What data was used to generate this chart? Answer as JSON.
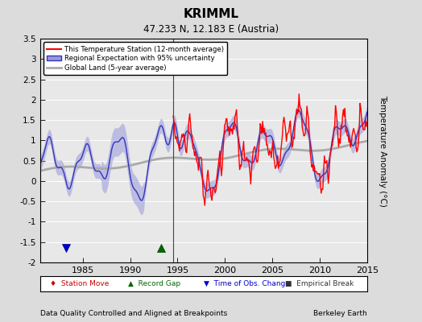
{
  "title": "KRIMML",
  "subtitle": "47.233 N, 12.183 E (Austria)",
  "ylabel": "Temperature Anomaly (°C)",
  "footer_left": "Data Quality Controlled and Aligned at Breakpoints",
  "footer_right": "Berkeley Earth",
  "xlim": [
    1980.5,
    2015
  ],
  "ylim": [
    -2.0,
    3.5
  ],
  "yticks": [
    -2,
    -1.5,
    -1,
    -0.5,
    0,
    0.5,
    1,
    1.5,
    2,
    2.5,
    3,
    3.5
  ],
  "xticks": [
    1985,
    1990,
    1995,
    2000,
    2005,
    2010,
    2015
  ],
  "bg_color": "#dcdcdc",
  "plot_bg_color": "#e8e8e8",
  "grid_color": "#ffffff",
  "vertical_line_x": 1994.5,
  "record_gap_x": 1993.3,
  "record_gap_y": -1.65,
  "obs_change_x": 1983.2,
  "obs_change_y": -1.65,
  "station_start_year": 1994.5,
  "legend_items": [
    {
      "label": "This Temperature Station (12-month average)",
      "color": "#ff0000",
      "lw": 1.2
    },
    {
      "label": "Regional Expectation with 95% uncertainty",
      "color": "#3333bb",
      "fill_color": "#9999dd"
    },
    {
      "label": "Global Land (5-year average)",
      "color": "#aaaaaa",
      "lw": 2.0
    }
  ]
}
